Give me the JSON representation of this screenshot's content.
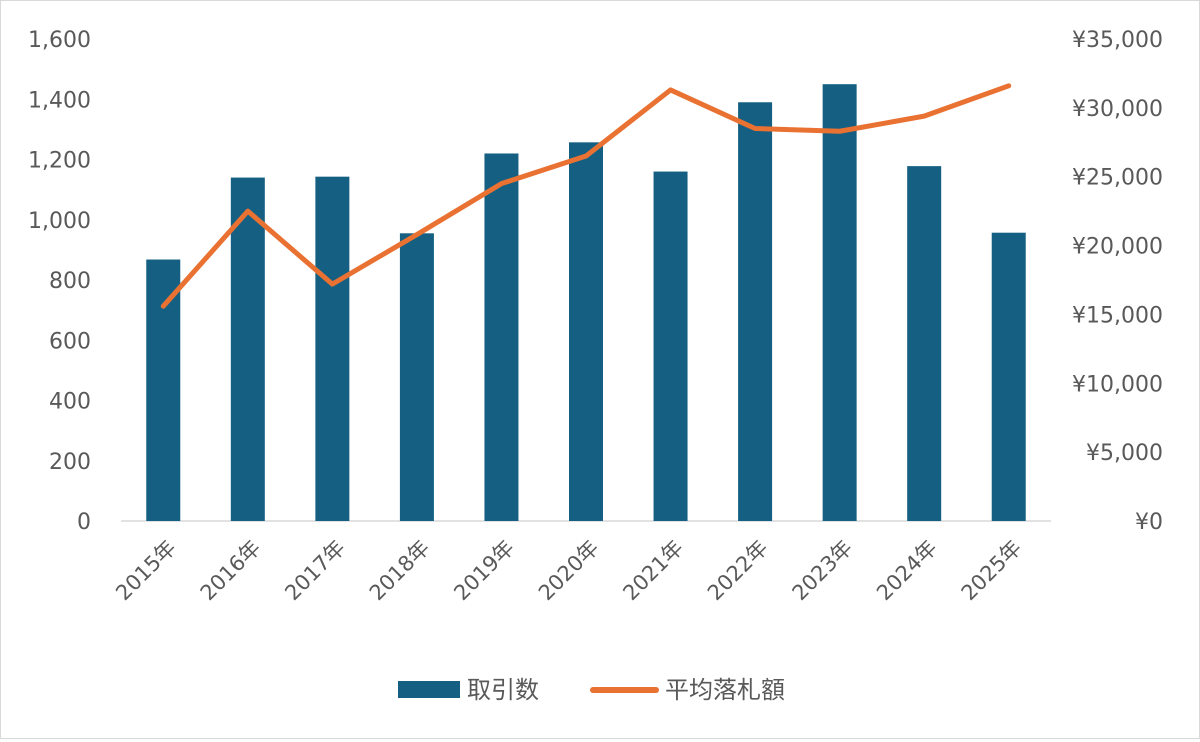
{
  "chart_data": {
    "type": "bar+line",
    "categories": [
      "2015年",
      "2016年",
      "2017年",
      "2018年",
      "2019年",
      "2020年",
      "2021年",
      "2022年",
      "2023年",
      "2024年",
      "2025年"
    ],
    "series": [
      {
        "name": "取引数",
        "type": "bar",
        "axis": "left",
        "color": "#156082",
        "values": [
          868,
          1140,
          1143,
          955,
          1220,
          1257,
          1160,
          1390,
          1450,
          1178,
          957
        ]
      },
      {
        "name": "平均落札額",
        "type": "line",
        "axis": "right",
        "color": "#E97132",
        "values": [
          15600,
          22500,
          17200,
          20800,
          24500,
          26500,
          31300,
          28500,
          28300,
          29400,
          31600
        ]
      }
    ],
    "y_left": {
      "ylim": [
        0,
        1600
      ],
      "ticks": [
        0,
        200,
        400,
        600,
        800,
        1000,
        1200,
        1400,
        1600
      ],
      "tick_labels": [
        "0",
        "200",
        "400",
        "600",
        "800",
        "1,000",
        "1,200",
        "1,400",
        "1,600"
      ]
    },
    "y_right": {
      "ylim": [
        0,
        35000
      ],
      "ticks": [
        0,
        5000,
        10000,
        15000,
        20000,
        25000,
        30000,
        35000
      ],
      "tick_labels": [
        "¥0",
        "¥5,000",
        "¥10,000",
        "¥15,000",
        "¥20,000",
        "¥25,000",
        "¥30,000",
        "¥35,000"
      ]
    },
    "title": "",
    "xlabel": "",
    "grid": false,
    "legend_position": "bottom"
  }
}
